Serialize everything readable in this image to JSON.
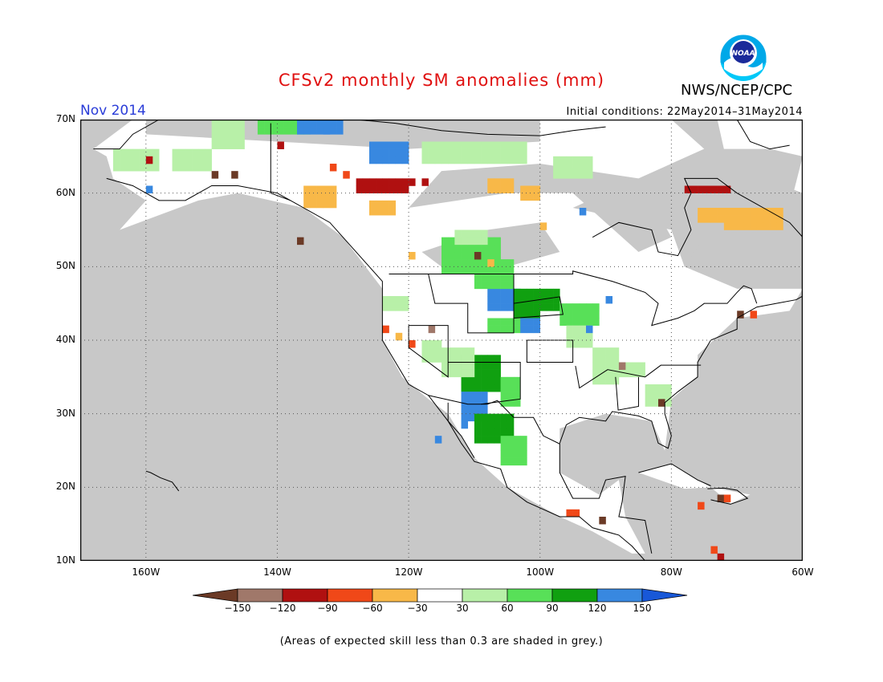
{
  "title": "CFSv2 monthly SM anomalies (mm)",
  "month_label": "Nov 2014",
  "initial_conditions": "Initial conditions: 22May2014–31May2014",
  "agency": "NWS/NCEP/CPC",
  "logo_text": "NOAA",
  "footnote": "(Areas of expected skill less than 0.3 are shaded in grey.)",
  "lat_labels": [
    "70N",
    "60N",
    "50N",
    "40N",
    "30N",
    "20N",
    "10N"
  ],
  "lon_labels": [
    "160W",
    "140W",
    "120W",
    "100W",
    "80W",
    "60W"
  ],
  "colorbar": {
    "labels": [
      "-150",
      "-120",
      "-90",
      "-60",
      "-30",
      "30",
      "60",
      "90",
      "120",
      "150"
    ],
    "colors": [
      "#6b3a26",
      "#a0786a",
      "#b01010",
      "#f04818",
      "#f8b848",
      "#ffffff",
      "#b8f0a8",
      "#58e058",
      "#10a010",
      "#3888e0",
      "#1858d8"
    ]
  },
  "map": {
    "extent": {
      "lon_min": -170,
      "lon_max": -60,
      "lat_min": 10,
      "lat_max": 70
    },
    "background_color": "#c8c8c8",
    "colors": {
      "grey": "#c8c8c8",
      "white": "#ffffff",
      "lightgreen": "#b8f0a8",
      "green": "#58e058",
      "darkgreen": "#10a010",
      "blue": "#3888e0",
      "orange": "#f8b848",
      "red": "#f04818",
      "darkred": "#b01010",
      "brown": "#6b3a26",
      "lightbrown": "#a0786a"
    }
  }
}
